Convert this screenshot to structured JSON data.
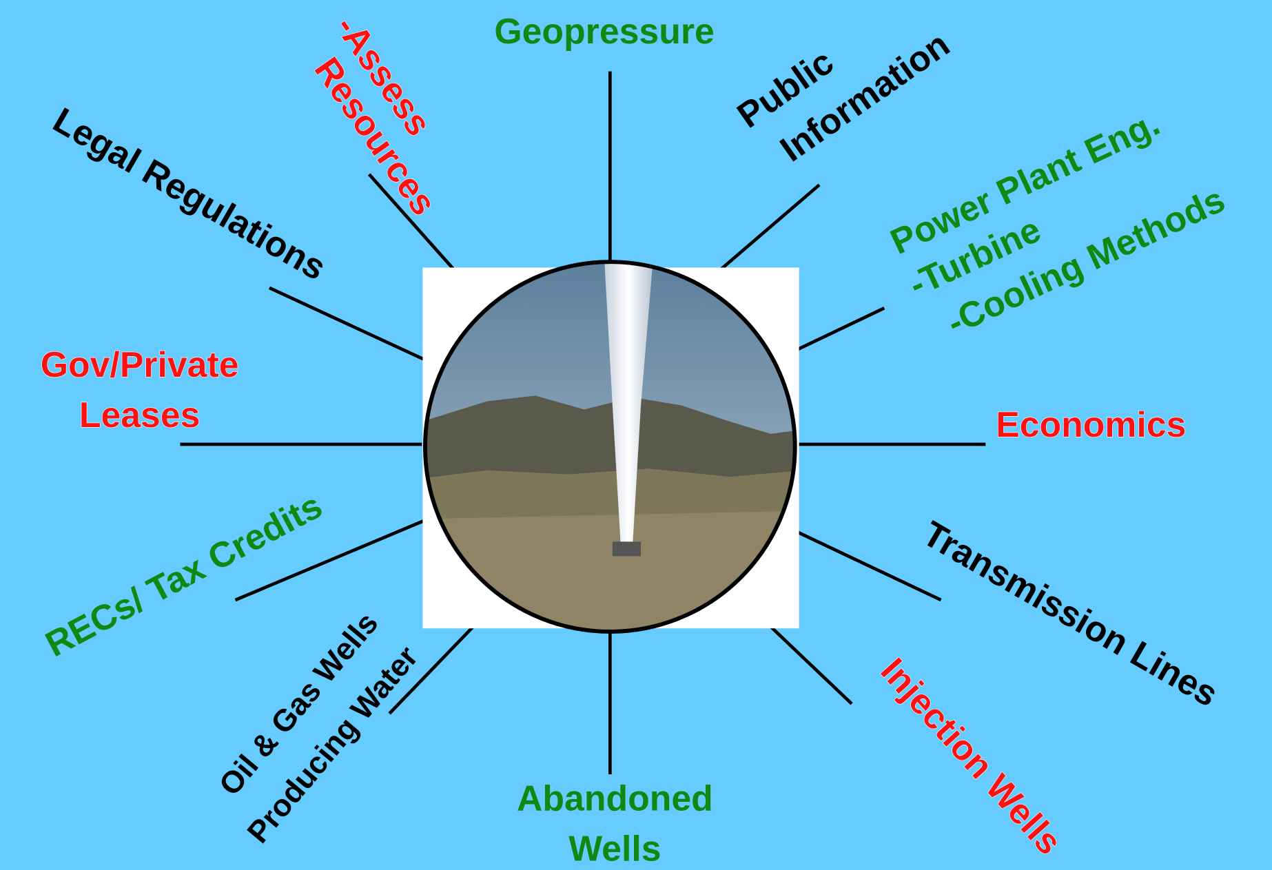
{
  "nodes": [
    {
      "lines": [
        "Geopressure"
      ]
    },
    {
      "lines": [
        "-Assess",
        "Resources"
      ]
    },
    {
      "lines": [
        "Public",
        "Information"
      ]
    },
    {
      "lines": [
        "Power Plant Eng.",
        "-Turbine",
        "-Cooling Methods"
      ]
    },
    {
      "lines": [
        "Legal Regulations"
      ]
    },
    {
      "lines": [
        "Gov/Private",
        "Leases"
      ]
    },
    {
      "lines": [
        "Economics"
      ]
    },
    {
      "lines": [
        "RECs/ Tax Credits"
      ]
    },
    {
      "lines": [
        "Transmission Lines"
      ]
    },
    {
      "lines": [
        "Oil & Gas Wells",
        "Producing Water"
      ]
    },
    {
      "lines": [
        "Abandoned",
        "Wells"
      ]
    },
    {
      "lines": [
        "Injection Wells"
      ]
    }
  ]
}
